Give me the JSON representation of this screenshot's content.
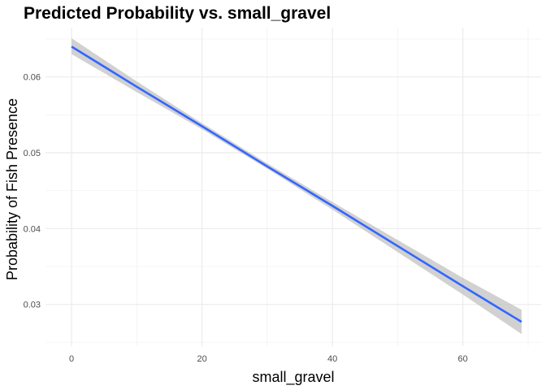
{
  "chart_data": {
    "type": "line",
    "title": "Predicted Probability vs. small_gravel",
    "xlabel": "small_gravel",
    "ylabel": "Probability of Fish Presence",
    "xlim": [
      -4,
      72
    ],
    "ylim": [
      0.0245,
      0.0665
    ],
    "x_ticks": [
      0,
      20,
      40,
      60
    ],
    "x_tick_labels": [
      "0",
      "20",
      "40",
      "60"
    ],
    "y_ticks": [
      0.03,
      0.04,
      0.05,
      0.06
    ],
    "y_tick_labels": [
      "0.03",
      "0.04",
      "0.05",
      "0.06"
    ],
    "grid": true,
    "series": [
      {
        "x": [
          0,
          10,
          20,
          30,
          40,
          50,
          60,
          69
        ],
        "y": [
          0.064,
          0.0587,
          0.0535,
          0.0482,
          0.043,
          0.0377,
          0.0324,
          0.0277
        ],
        "ci_lower": [
          0.063,
          0.058,
          0.0531,
          0.0479,
          0.0425,
          0.0369,
          0.0313,
          0.0261
        ],
        "ci_upper": [
          0.0651,
          0.0594,
          0.0539,
          0.0486,
          0.0435,
          0.0385,
          0.0335,
          0.0293
        ]
      }
    ],
    "colors": {
      "line": "#3366FF",
      "band": "#BEBEBE",
      "grid_major": "#EBEBEB",
      "grid_minor": "#F4F4F4"
    }
  }
}
